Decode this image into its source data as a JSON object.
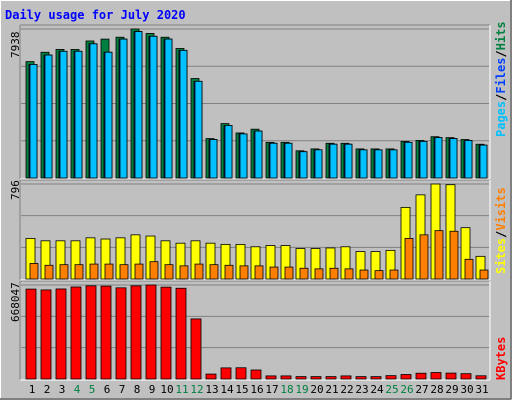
{
  "title": "Daily usage for July 2020",
  "colors": {
    "background": "#c0c0c0",
    "title": "#0000ff",
    "hits": "#008040",
    "files": "#0040ff",
    "pages": "#00c0ff",
    "visits": "#ff8000",
    "sites": "#ffff00",
    "kbytes": "#ff0000",
    "grid": "#808080",
    "weekend": "#008040",
    "weekday": "#000000"
  },
  "chart_data": [
    {
      "type": "bar",
      "name": "hits-files-pages",
      "ymax_label": "7938",
      "ylim": [
        0,
        7938
      ],
      "legend": [
        "Pages",
        "Files",
        "Hits"
      ],
      "categories": [
        "1",
        "2",
        "3",
        "4",
        "5",
        "6",
        "7",
        "8",
        "9",
        "10",
        "11",
        "12",
        "13",
        "14",
        "15",
        "16",
        "17",
        "18",
        "19",
        "20",
        "21",
        "22",
        "23",
        "24",
        "25",
        "26",
        "27",
        "28",
        "29",
        "30",
        "31"
      ],
      "series": [
        {
          "name": "Hits",
          "values": [
            6200,
            6700,
            6850,
            6850,
            7300,
            7400,
            7500,
            7938,
            7700,
            7500,
            6900,
            5300,
            2100,
            2900,
            2400,
            2600,
            1900,
            1900,
            1450,
            1550,
            1850,
            1850,
            1550,
            1550,
            1550,
            1950,
            2000,
            2200,
            2150,
            2050,
            1800
          ]
        },
        {
          "name": "Files",
          "values": [
            6050,
            6550,
            6750,
            6750,
            7150,
            6700,
            7400,
            7800,
            7550,
            7400,
            6800,
            5150,
            2050,
            2800,
            2350,
            2500,
            1850,
            1850,
            1400,
            1500,
            1800,
            1800,
            1500,
            1500,
            1500,
            1900,
            1950,
            2150,
            2100,
            2000,
            1750
          ]
        },
        {
          "name": "Pages",
          "values": [
            6050,
            6550,
            6750,
            6750,
            7150,
            6700,
            7400,
            7800,
            7550,
            7400,
            6800,
            5150,
            2050,
            2800,
            2350,
            2500,
            1850,
            1850,
            1400,
            1500,
            1800,
            1800,
            1500,
            1500,
            1500,
            1900,
            1950,
            2150,
            2100,
            2000,
            1750
          ]
        }
      ]
    },
    {
      "type": "bar",
      "name": "visits-sites",
      "ymax_label": "796",
      "ylim": [
        0,
        796
      ],
      "legend": [
        "Visits",
        "Sites"
      ],
      "categories": [
        "1",
        "2",
        "3",
        "4",
        "5",
        "6",
        "7",
        "8",
        "9",
        "10",
        "11",
        "12",
        "13",
        "14",
        "15",
        "16",
        "17",
        "18",
        "19",
        "20",
        "21",
        "22",
        "23",
        "24",
        "25",
        "26",
        "27",
        "28",
        "29",
        "30",
        "31"
      ],
      "series": [
        {
          "name": "Sites",
          "values": [
            340,
            320,
            320,
            320,
            345,
            335,
            345,
            370,
            360,
            320,
            300,
            320,
            300,
            290,
            290,
            270,
            280,
            280,
            255,
            255,
            260,
            270,
            230,
            230,
            240,
            600,
            705,
            796,
            790,
            430,
            190
          ]
        },
        {
          "name": "Visits",
          "values": [
            130,
            115,
            120,
            120,
            125,
            125,
            120,
            125,
            145,
            120,
            110,
            125,
            120,
            115,
            110,
            110,
            100,
            100,
            90,
            85,
            90,
            85,
            75,
            70,
            75,
            340,
            370,
            405,
            400,
            165,
            75
          ]
        }
      ]
    },
    {
      "type": "bar",
      "name": "kbytes",
      "ymax_label": "668047",
      "ylim": [
        0,
        668047
      ],
      "legend": [
        "KBytes"
      ],
      "categories": [
        "1",
        "2",
        "3",
        "4",
        "5",
        "6",
        "7",
        "8",
        "9",
        "10",
        "11",
        "12",
        "13",
        "14",
        "15",
        "16",
        "17",
        "18",
        "19",
        "20",
        "21",
        "22",
        "23",
        "24",
        "25",
        "26",
        "27",
        "28",
        "29",
        "30",
        "31"
      ],
      "series": [
        {
          "name": "KBytes",
          "values": [
            639000,
            633000,
            640000,
            654000,
            662000,
            660000,
            648000,
            662000,
            668047,
            653000,
            645000,
            427000,
            35000,
            79000,
            80000,
            64000,
            22000,
            22000,
            17000,
            17000,
            17000,
            22000,
            17000,
            17000,
            24000,
            32000,
            41000,
            46000,
            42000,
            38000,
            23000
          ]
        }
      ]
    }
  ],
  "weekend_days": [
    "4",
    "5",
    "11",
    "12",
    "18",
    "19",
    "25",
    "26"
  ],
  "legend_separator": "/"
}
